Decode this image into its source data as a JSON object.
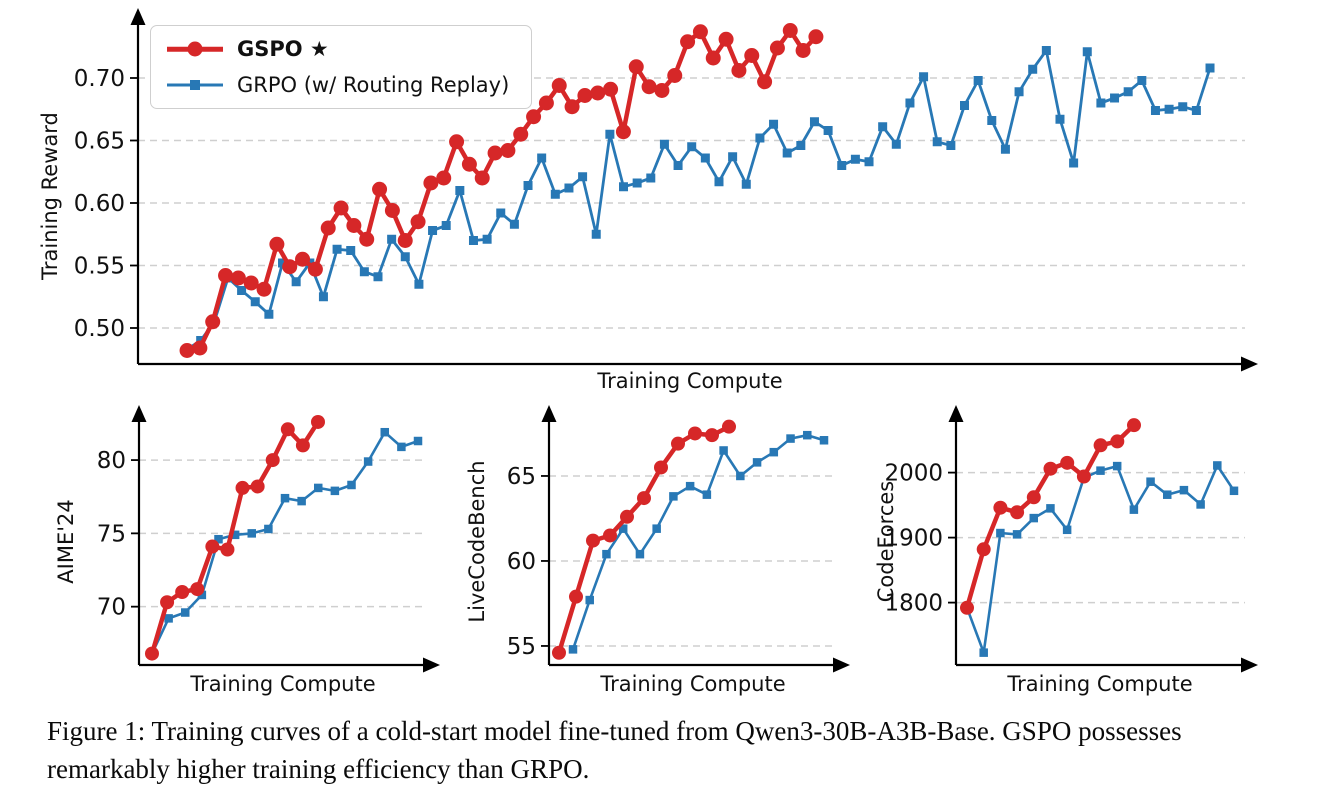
{
  "legend": {
    "entries": [
      {
        "label": "GSPO ★",
        "bold": true,
        "color": "#d62728",
        "marker": "circle"
      },
      {
        "label": "GRPO (w/ Routing Replay)",
        "bold": false,
        "color": "#2878b5",
        "marker": "square"
      }
    ]
  },
  "caption": {
    "line1": "Figure 1: Training curves of a cold-start model fine-tuned from Qwen3-30B-A3B-Base. GSPO possesses",
    "line2": "remarkably higher training efficiency than GRPO."
  },
  "colors": {
    "gspo": "#d62728",
    "grpo": "#2878b5",
    "grid": "#cfcfcf",
    "axis": "#000000"
  },
  "charts": [
    {
      "type": "line",
      "ylabel": "Training Reward",
      "xlabel": "Training Compute",
      "ylim": [
        0.4712,
        0.74
      ],
      "yticks": [
        {
          "label": "0.50",
          "value": 0.5
        },
        {
          "label": "0.55",
          "value": 0.55
        },
        {
          "label": "0.60",
          "value": 0.6
        },
        {
          "label": "0.65",
          "value": 0.65
        },
        {
          "label": "0.70",
          "value": 0.7
        }
      ],
      "series": [
        {
          "name": "GRPO (w/ Routing Replay)",
          "color": "#2878b5",
          "marker": "square",
          "line_width": 2.8,
          "marker_size": 9,
          "x_range": [
            0.0443,
            0.9684
          ],
          "values": [
            0.483,
            0.49,
            0.505,
            0.54,
            0.53,
            0.521,
            0.511,
            0.552,
            0.537,
            0.552,
            0.525,
            0.563,
            0.562,
            0.545,
            0.541,
            0.571,
            0.557,
            0.535,
            0.578,
            0.582,
            0.61,
            0.57,
            0.571,
            0.592,
            0.583,
            0.614,
            0.636,
            0.607,
            0.612,
            0.621,
            0.575,
            0.655,
            0.613,
            0.616,
            0.62,
            0.647,
            0.63,
            0.645,
            0.636,
            0.617,
            0.637,
            0.615,
            0.652,
            0.663,
            0.64,
            0.646,
            0.665,
            0.658,
            0.63,
            0.635,
            0.633,
            0.661,
            0.647,
            0.68,
            0.701,
            0.649,
            0.646,
            0.678,
            0.698,
            0.666,
            0.643,
            0.689,
            0.707,
            0.722,
            0.667,
            0.632,
            0.721,
            0.68,
            0.684,
            0.689,
            0.698,
            0.674,
            0.675,
            0.677,
            0.674,
            0.708
          ]
        },
        {
          "name": "GSPO",
          "color": "#d62728",
          "marker": "circle",
          "line_width": 4.5,
          "marker_size": 15,
          "x_range": [
            0.0443,
            0.6124
          ],
          "values": [
            0.482,
            0.484,
            0.505,
            0.542,
            0.54,
            0.536,
            0.531,
            0.567,
            0.549,
            0.555,
            0.547,
            0.58,
            0.596,
            0.582,
            0.571,
            0.611,
            0.594,
            0.57,
            0.585,
            0.616,
            0.62,
            0.649,
            0.631,
            0.62,
            0.64,
            0.642,
            0.655,
            0.669,
            0.68,
            0.694,
            0.677,
            0.686,
            0.688,
            0.691,
            0.657,
            0.709,
            0.693,
            0.69,
            0.702,
            0.729,
            0.737,
            0.716,
            0.731,
            0.706,
            0.718,
            0.697,
            0.724,
            0.738,
            0.722,
            0.733
          ]
        }
      ]
    },
    {
      "type": "line",
      "ylabel": "AIME'24",
      "xlabel": "Training Compute",
      "ylim": [
        66.02,
        82.87
      ],
      "yticks": [
        {
          "label": "70",
          "value": 70
        },
        {
          "label": "75",
          "value": 75
        },
        {
          "label": "80",
          "value": 80
        }
      ],
      "series": [
        {
          "name": "GRPO (w/ Routing Replay)",
          "color": "#2878b5",
          "marker": "square",
          "line_width": 2.6,
          "marker_size": 8.5,
          "x_range": [
            0.0451,
            0.9688
          ],
          "values": [
            66.8,
            69.2,
            69.6,
            70.8,
            74.6,
            74.9,
            75.0,
            75.3,
            77.4,
            77.2,
            78.1,
            77.9,
            78.3,
            79.9,
            81.9,
            80.9,
            81.3
          ]
        },
        {
          "name": "GSPO",
          "color": "#d62728",
          "marker": "circle",
          "line_width": 4.5,
          "marker_size": 14,
          "x_range": [
            0.0451,
            0.6215
          ],
          "values": [
            66.8,
            70.3,
            71.0,
            71.2,
            74.1,
            73.9,
            78.1,
            78.2,
            80.0,
            82.1,
            81.0,
            82.6
          ]
        }
      ]
    },
    {
      "type": "line",
      "ylabel": "LiveCodeBench",
      "xlabel": "Training Compute",
      "ylim": [
        53.88,
        68.41
      ],
      "yticks": [
        {
          "label": "55",
          "value": 55
        },
        {
          "label": "60",
          "value": 60
        },
        {
          "label": "65",
          "value": 65
        }
      ],
      "series": [
        {
          "name": "GRPO (w/ Routing Replay)",
          "color": "#2878b5",
          "marker": "square",
          "line_width": 2.6,
          "marker_size": 8.5,
          "x_range": [
            0.0833,
            0.9549
          ],
          "values": [
            54.8,
            57.7,
            60.4,
            61.9,
            60.4,
            61.9,
            63.8,
            64.4,
            63.9,
            66.5,
            65.0,
            65.8,
            66.4,
            67.2,
            67.4,
            67.1
          ]
        },
        {
          "name": "GSPO",
          "color": "#d62728",
          "marker": "circle",
          "line_width": 4.5,
          "marker_size": 14,
          "x_range": [
            0.0347,
            0.625
          ],
          "values": [
            54.6,
            57.9,
            61.2,
            61.5,
            62.6,
            63.7,
            65.5,
            66.9,
            67.5,
            67.4,
            67.9
          ]
        }
      ]
    },
    {
      "type": "line",
      "ylabel": "CodeForces",
      "xlabel": "Training Compute",
      "ylim": [
        1704,
        2084
      ],
      "yticks": [
        {
          "label": "1800",
          "value": 1800
        },
        {
          "label": "1900",
          "value": 1900
        },
        {
          "label": "2000",
          "value": 2000
        }
      ],
      "series": [
        {
          "name": "GRPO (w/ Routing Replay)",
          "color": "#2878b5",
          "marker": "square",
          "line_width": 2.6,
          "marker_size": 8.5,
          "x_range": [
            0.0381,
            0.9619
          ],
          "values": [
            1792,
            1723,
            1907,
            1905,
            1930,
            1945,
            1912,
            1992,
            2003,
            2010,
            1943,
            1986,
            1966,
            1973,
            1951,
            2011,
            1972
          ]
        },
        {
          "name": "GSPO",
          "color": "#d62728",
          "marker": "circle",
          "line_width": 4.5,
          "marker_size": 14,
          "x_range": [
            0.0381,
            0.6159
          ],
          "values": [
            1792,
            1882,
            1946,
            1939,
            1962,
            2006,
            2015,
            1994,
            2042,
            2048,
            2073
          ]
        }
      ]
    }
  ]
}
